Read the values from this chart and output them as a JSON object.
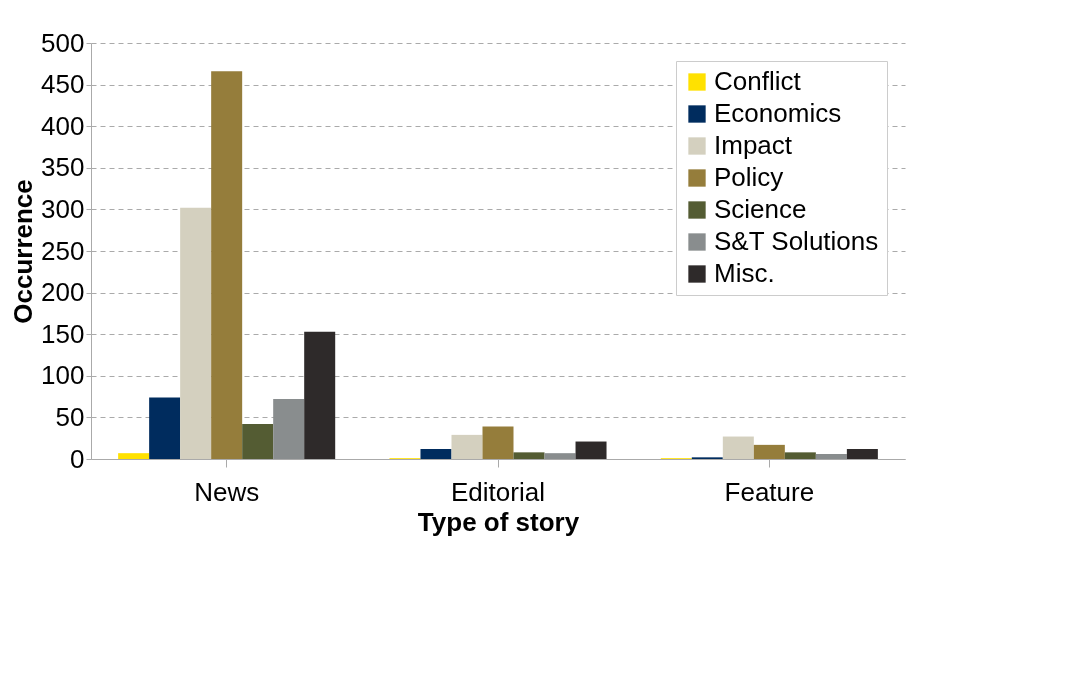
{
  "chart_data": {
    "type": "bar",
    "xlabel": "Type of story",
    "ylabel": "Occurrence",
    "categories": [
      "News",
      "Editorial",
      "Feature"
    ],
    "series": [
      {
        "name": "Conflict",
        "color": "#ffe100",
        "values": [
          7,
          1,
          1
        ]
      },
      {
        "name": "Economics",
        "color": "#002c5e",
        "values": [
          74,
          12,
          2
        ]
      },
      {
        "name": "Impact",
        "color": "#d4d0bf",
        "values": [
          302,
          29,
          27
        ]
      },
      {
        "name": "Policy",
        "color": "#957d3b",
        "values": [
          466,
          39,
          17
        ]
      },
      {
        "name": "Science",
        "color": "#545c33",
        "values": [
          42,
          8,
          8
        ]
      },
      {
        "name": "S&T Solutions",
        "color": "#898d8e",
        "values": [
          72,
          7,
          6
        ]
      },
      {
        "name": "Misc.",
        "color": "#2e2a2a",
        "values": [
          153,
          21,
          12
        ]
      }
    ],
    "ylim": [
      0,
      500
    ],
    "yticks": [
      0,
      50,
      100,
      150,
      200,
      250,
      300,
      350,
      400,
      450,
      500
    ],
    "grid": "y",
    "legend": "top right"
  }
}
